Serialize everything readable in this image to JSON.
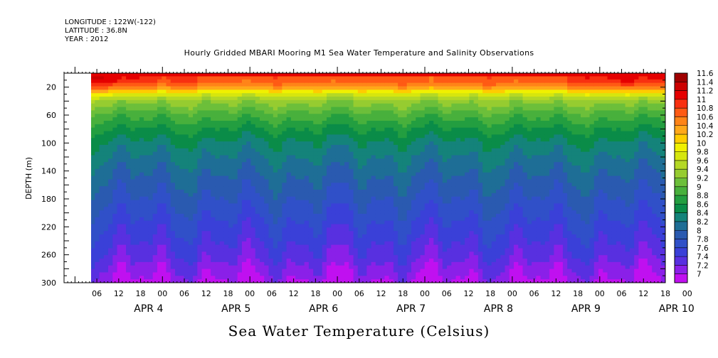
{
  "header": {
    "longitude": "LONGITUDE : 122W(-122)",
    "latitude": "LATITUDE : 36.8N",
    "year": "YEAR : 2012"
  },
  "title": "Hourly Gridded MBARI Mooring M1 Sea Water Temperature and Salinity Observations",
  "bottom_title": "Sea Water Temperature (Celsius)",
  "chart_data": {
    "type": "heatmap",
    "title": "Hourly Gridded MBARI Mooring M1 Sea Water Temperature and Salinity Observations",
    "ylabel": "DEPTH (m)",
    "xlabel": "",
    "y_reversed": true,
    "y_range": [
      0,
      300
    ],
    "y_ticks": [
      20,
      60,
      100,
      140,
      180,
      220,
      260,
      300
    ],
    "x_range_hours": [
      69,
      234
    ],
    "x_start_hour": 75,
    "x_ticks": [
      "06",
      "12",
      "18",
      "00",
      "06",
      "12",
      "18",
      "00",
      "06",
      "12",
      "18",
      "00",
      "06",
      "12",
      "18",
      "00",
      "06",
      "12",
      "18",
      "00",
      "06",
      "12",
      "18",
      "00",
      "06",
      "12",
      "18",
      "00"
    ],
    "x_day_labels": [
      "APR  4",
      "APR  5",
      "APR  6",
      "APR  7",
      "APR  8",
      "APR  9",
      "APR 10"
    ],
    "colorbar": {
      "levels": [
        11.6,
        11.4,
        11.2,
        11,
        10.8,
        10.6,
        10.4,
        10.2,
        10,
        9.8,
        9.6,
        9.4,
        9.2,
        9,
        8.8,
        8.6,
        8.4,
        8.2,
        8,
        7.8,
        7.6,
        7.4,
        7.2,
        7
      ],
      "colors": [
        "#a00000",
        "#cc0000",
        "#e50000",
        "#f83010",
        "#ff5a14",
        "#ff8418",
        "#ffa81a",
        "#ffcc00",
        "#f0f000",
        "#d6e60e",
        "#b4d825",
        "#96cc30",
        "#6cbf3a",
        "#48b03c",
        "#239e40",
        "#0a8c48",
        "#14837a",
        "#1e6e96",
        "#2a5ab0",
        "#3050c8",
        "#3a40d8",
        "#5830e0",
        "#8a20e8",
        "#c010f0"
      ]
    },
    "depth_profile": [
      {
        "depth": 10,
        "value": 11.2
      },
      {
        "depth": 20,
        "value": 10.8
      },
      {
        "depth": 30,
        "value": 10.0
      },
      {
        "depth": 40,
        "value": 9.5
      },
      {
        "depth": 60,
        "value": 9.1
      },
      {
        "depth": 80,
        "value": 8.8
      },
      {
        "depth": 100,
        "value": 8.55
      },
      {
        "depth": 140,
        "value": 8.25
      },
      {
        "depth": 180,
        "value": 8.0
      },
      {
        "depth": 220,
        "value": 7.75
      },
      {
        "depth": 260,
        "value": 7.5
      },
      {
        "depth": 300,
        "value": 7.15
      }
    ]
  }
}
